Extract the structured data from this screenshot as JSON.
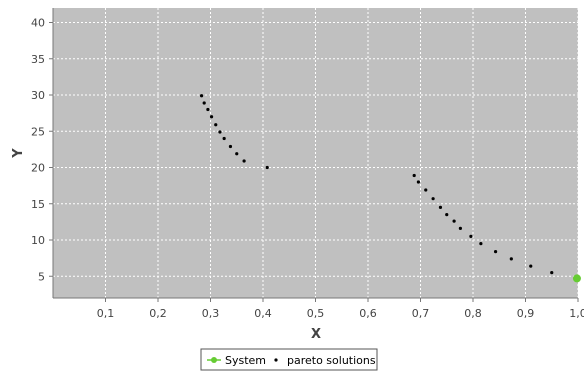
{
  "chart_data": {
    "type": "scatter",
    "xlabel": "X",
    "ylabel": "Y",
    "xlim": [
      0,
      1.0
    ],
    "ylim": [
      2,
      42
    ],
    "x_ticks": [
      "0,1",
      "0,2",
      "0,3",
      "0,4",
      "0,5",
      "0,6",
      "0,7",
      "0,8",
      "0,9",
      "1,0"
    ],
    "y_ticks": [
      "5",
      "10",
      "15",
      "20",
      "25",
      "30",
      "35",
      "40"
    ],
    "grid": true,
    "legend_position": "bottom-center",
    "background_color": "#c0c0c0",
    "series": [
      {
        "name": "System",
        "color": "#66cc33",
        "marker": "circle-line",
        "points": [
          [
            0.998,
            4.7
          ]
        ]
      },
      {
        "name": "pareto solutions",
        "color": "#000000",
        "marker": "dot",
        "points": [
          [
            0.283,
            29.9
          ],
          [
            0.288,
            28.9
          ],
          [
            0.295,
            28.0
          ],
          [
            0.302,
            27.0
          ],
          [
            0.31,
            25.9
          ],
          [
            0.318,
            24.9
          ],
          [
            0.326,
            24.0
          ],
          [
            0.338,
            22.9
          ],
          [
            0.35,
            21.9
          ],
          [
            0.364,
            20.9
          ],
          [
            0.408,
            20.0
          ],
          [
            0.688,
            18.9
          ],
          [
            0.696,
            18.0
          ],
          [
            0.71,
            16.9
          ],
          [
            0.724,
            15.7
          ],
          [
            0.738,
            14.5
          ],
          [
            0.75,
            13.5
          ],
          [
            0.764,
            12.6
          ],
          [
            0.776,
            11.6
          ],
          [
            0.796,
            10.5
          ],
          [
            0.815,
            9.5
          ],
          [
            0.843,
            8.4
          ],
          [
            0.873,
            7.4
          ],
          [
            0.91,
            6.4
          ],
          [
            0.95,
            5.5
          ]
        ]
      }
    ]
  }
}
